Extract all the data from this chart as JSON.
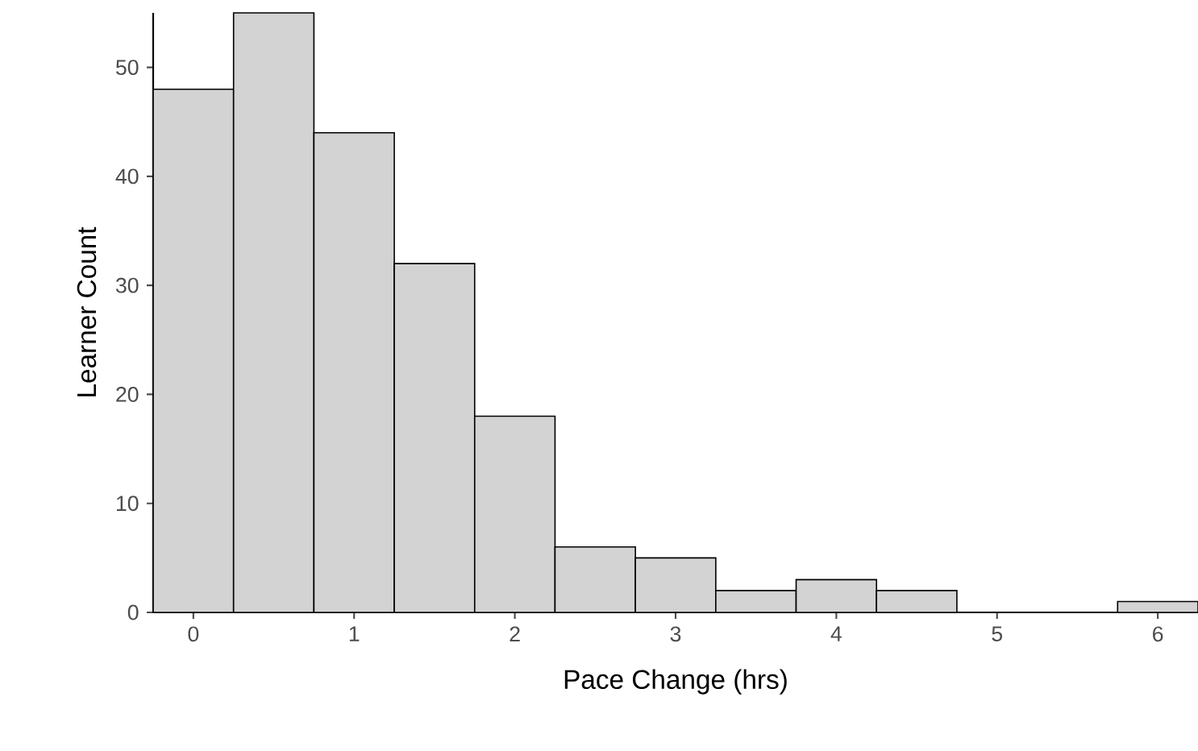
{
  "chart_data": {
    "type": "histogram",
    "xlabel": "Pace Change (hrs)",
    "ylabel": "Learner Count",
    "bins": [
      -0.25,
      0.25,
      0.75,
      1.25,
      1.75,
      2.25,
      2.75,
      3.25,
      3.75,
      4.25,
      4.75,
      5.25,
      5.75,
      6.25
    ],
    "values": [
      48,
      55,
      44,
      32,
      18,
      6,
      5,
      2,
      3,
      2,
      0,
      0,
      1
    ],
    "color": "#d3d3d3",
    "xlim": [
      -0.25,
      6.25
    ],
    "ylim": [
      0,
      55
    ],
    "xticks": [
      0,
      1,
      2,
      3,
      4,
      5,
      6
    ],
    "yticks": [
      0,
      10,
      20,
      30,
      40,
      50
    ]
  }
}
